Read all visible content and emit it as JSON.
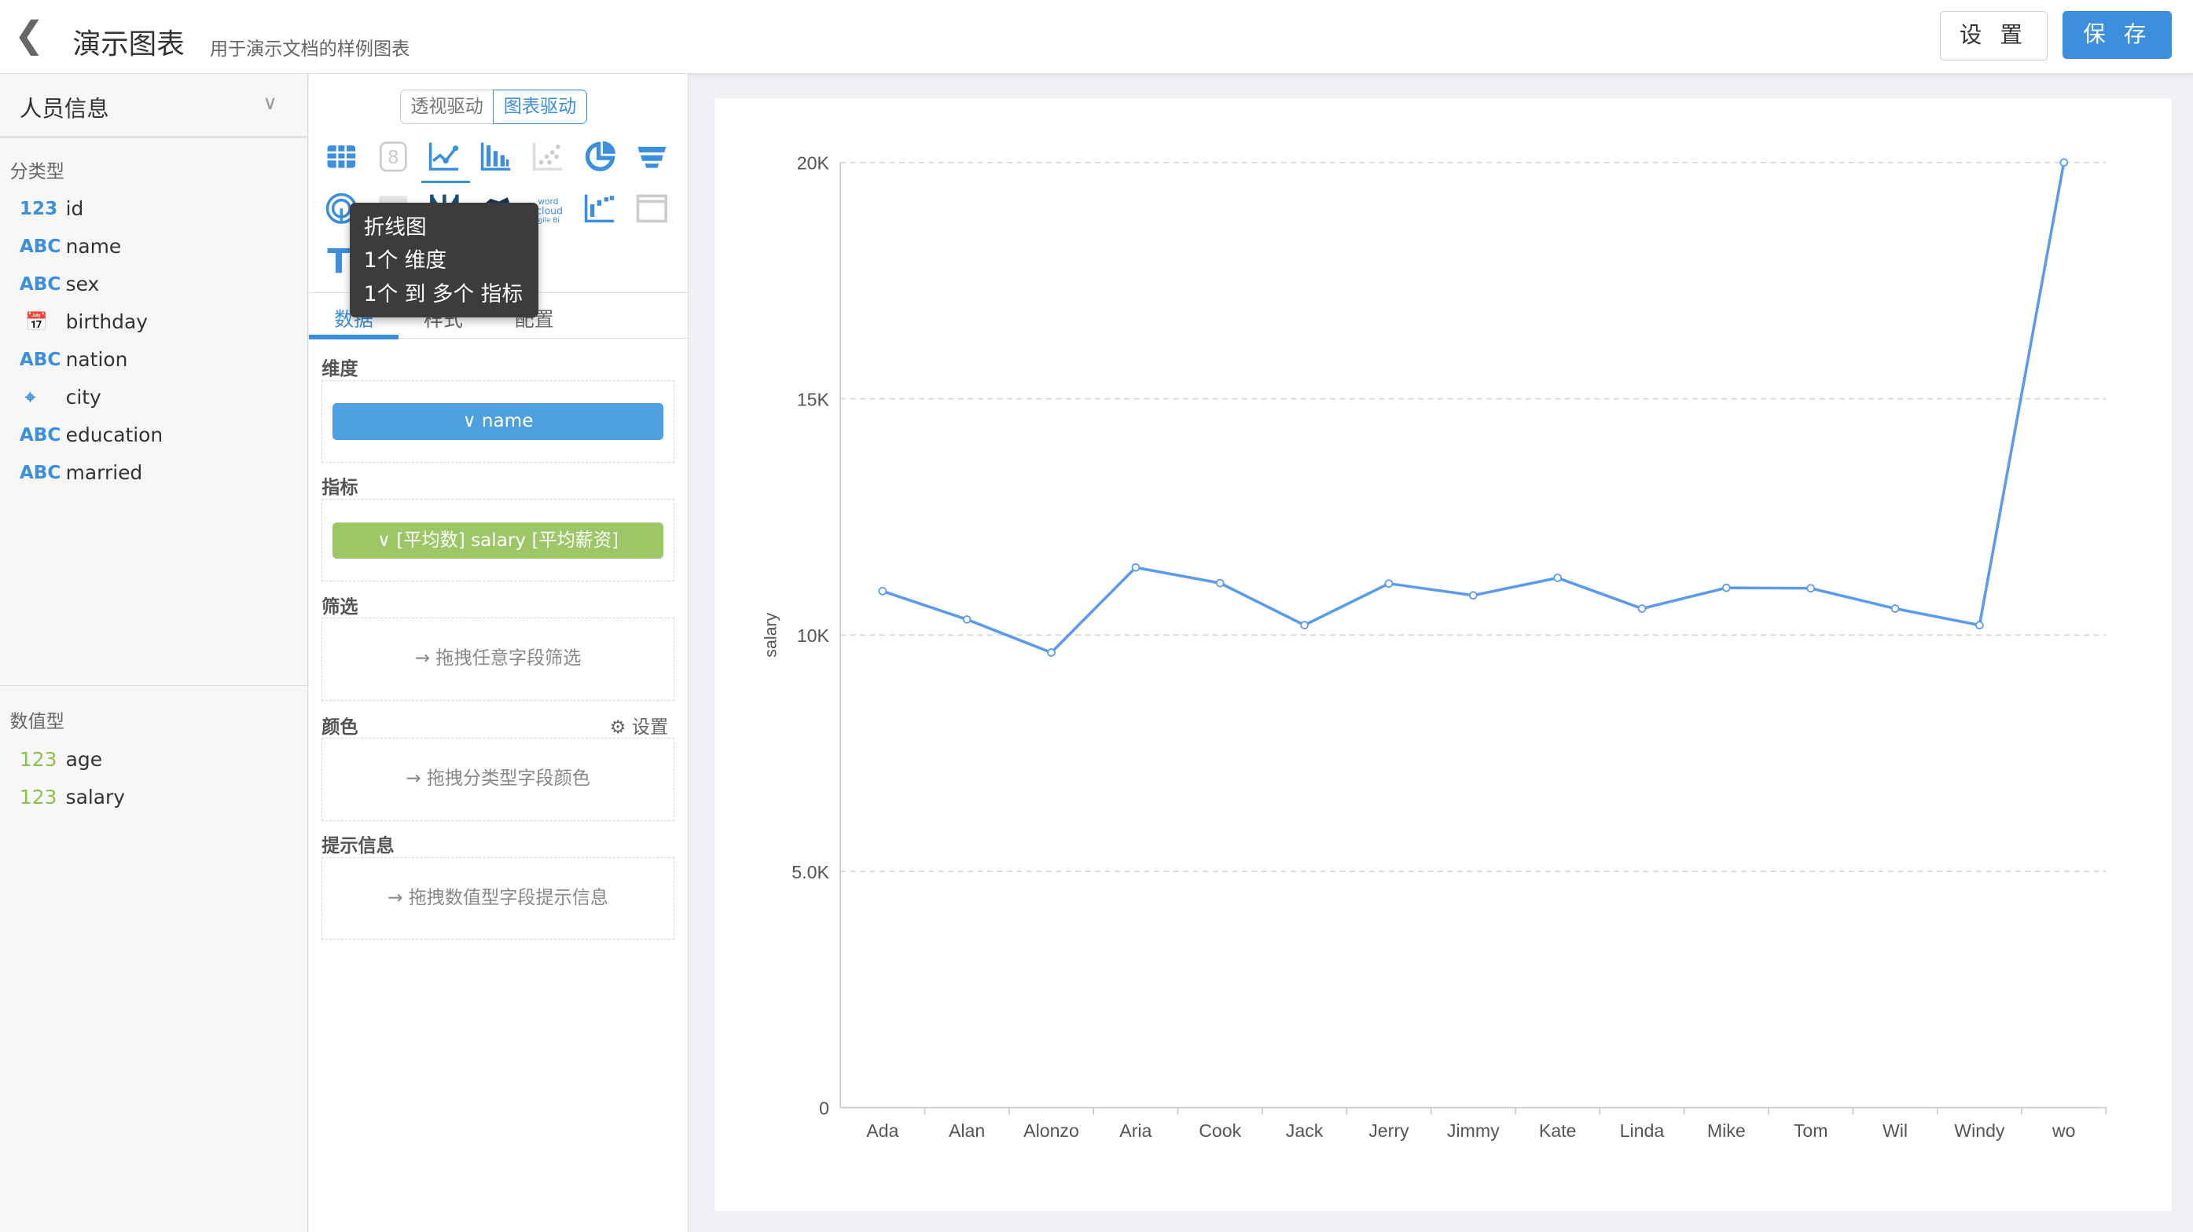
{
  "header": {
    "back_icon": "chevron-left-icon",
    "title": "演示图表",
    "subtitle": "用于演示文档的样例图表",
    "settings_label": "设 置",
    "save_label": "保 存"
  },
  "left": {
    "dataset": "人员信息",
    "categorical_label": "分类型",
    "categorical": [
      {
        "type": "123",
        "name": "id"
      },
      {
        "type": "ABC",
        "name": "name"
      },
      {
        "type": "ABC",
        "name": "sex"
      },
      {
        "type": "calendar-icon",
        "name": "birthday"
      },
      {
        "type": "ABC",
        "name": "nation"
      },
      {
        "type": "map-pin-icon",
        "name": "city"
      },
      {
        "type": "ABC",
        "name": "education"
      },
      {
        "type": "ABC",
        "name": "married"
      }
    ],
    "numeric_label": "数值型",
    "numeric": [
      {
        "type": "123",
        "name": "age"
      },
      {
        "type": "123",
        "name": "salary"
      }
    ]
  },
  "middle": {
    "mode_tabs": [
      "透视驱动",
      "图表驱动"
    ],
    "active_mode": "图表驱动",
    "chart_types": [
      "table",
      "number-card",
      "line",
      "bar",
      "scatter",
      "pie",
      "funnel",
      "radar",
      "heatmap",
      "parallel",
      "china-map",
      "wordcloud",
      "waterfall",
      "iframe",
      "text",
      "gauge"
    ],
    "active_chart_type": "line",
    "wordcloud_text": "word cloud agile Bi",
    "tooltip": {
      "title": "折线图",
      "line1": "1个 维度",
      "line2": "1个 到 多个 指标"
    },
    "tabs": [
      "数据",
      "样式",
      "配置"
    ],
    "active_tab": "数据",
    "dimension_label": "维度",
    "dimension_value": "name",
    "metric_label": "指标",
    "metric_value": "[平均数] salary [平均薪资]",
    "filter_label": "筛选",
    "filter_hint": "拖拽任意字段筛选",
    "color_label": "颜色",
    "color_settings": "设置",
    "color_hint": "拖拽分类型字段颜色",
    "tooltip_label": "提示信息",
    "tooltip_hint": "拖拽数值型字段提示信息",
    "colors": {
      "primary": "#3b8fdd",
      "metric": "#9dc767"
    }
  },
  "chart_data": {
    "type": "line",
    "xlabel": "",
    "ylabel": "salary",
    "categories": [
      "Ada",
      "Alan",
      "Alonzo",
      "Aria",
      "Cook",
      "Jack",
      "Jerry",
      "Jimmy",
      "Kate",
      "Linda",
      "Mike",
      "Tom",
      "Wil",
      "Windy",
      "wo"
    ],
    "values": [
      10930,
      10330,
      9630,
      11430,
      11100,
      10210,
      11090,
      10840,
      11210,
      10560,
      11000,
      10990,
      10560,
      10210,
      20000
    ],
    "ylim": [
      0,
      20000
    ],
    "yticks": [
      "0",
      "5.0K",
      "10K",
      "15K",
      "20K"
    ],
    "ytick_values": [
      0,
      5000,
      10000,
      15000,
      20000
    ],
    "grid": true,
    "color": "#5b9bec"
  }
}
